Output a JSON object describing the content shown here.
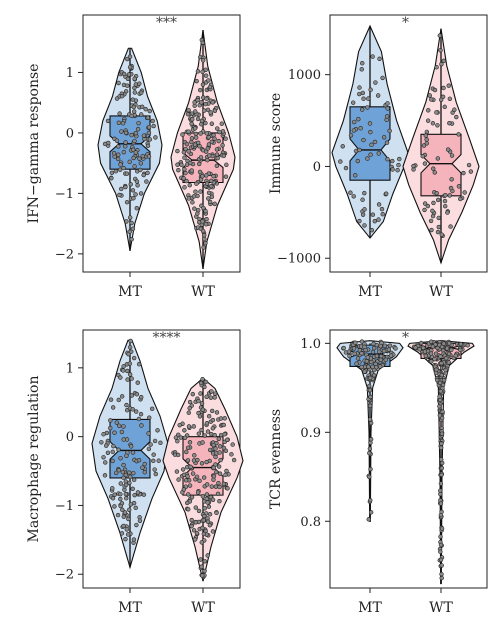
{
  "colors": {
    "MT_violin": "#cfe0f1",
    "MT_box": "#6fa2d6",
    "WT_violin": "#fbdde0",
    "WT_box": "#f5b3bc",
    "point": "#8a8a8a",
    "outline": "#111111"
  },
  "chart_data": [
    {
      "type": "violin",
      "ylabel": "IFN−gamma response",
      "categories": [
        "MT",
        "WT"
      ],
      "ylim": [
        -2.3,
        1.95
      ],
      "yticks": [
        1,
        0,
        -1,
        -2
      ],
      "ytick_labels": [
        "1",
        "0",
        "−1",
        "−2"
      ],
      "significance": "***",
      "box": [
        {
          "group": "MT",
          "q1": -0.6,
          "median": -0.18,
          "q3": 0.28,
          "whisker_low": -1.95,
          "whisker_high": 1.4
        },
        {
          "group": "WT",
          "q1": -0.82,
          "median": -0.45,
          "q3": 0.0,
          "whisker_low": -2.25,
          "whisker_high": 1.7
        }
      ]
    },
    {
      "type": "violin",
      "ylabel": "Immune score",
      "categories": [
        "MT",
        "WT"
      ],
      "ylim": [
        -1150,
        1650
      ],
      "yticks": [
        1000,
        0,
        -1000
      ],
      "ytick_labels": [
        "1000",
        "0",
        "−1000"
      ],
      "significance": "*",
      "box": [
        {
          "group": "MT",
          "q1": -150,
          "median": 180,
          "q3": 650,
          "whisker_low": -780,
          "whisker_high": 1530
        },
        {
          "group": "WT",
          "q1": -320,
          "median": 30,
          "q3": 350,
          "whisker_low": -1050,
          "whisker_high": 1500
        }
      ]
    },
    {
      "type": "violin",
      "ylabel": "Macrophage regulation",
      "categories": [
        "MT",
        "WT"
      ],
      "ylim": [
        -2.2,
        1.55
      ],
      "yticks": [
        1,
        0,
        -1,
        -2
      ],
      "ytick_labels": [
        "1",
        "0",
        "−1",
        "−2"
      ],
      "significance": "****",
      "box": [
        {
          "group": "MT",
          "q1": -0.6,
          "median": -0.2,
          "q3": 0.25,
          "whisker_low": -1.9,
          "whisker_high": 1.4
        },
        {
          "group": "WT",
          "q1": -0.85,
          "median": -0.45,
          "q3": 0.0,
          "whisker_low": -2.1,
          "whisker_high": 0.85
        }
      ]
    },
    {
      "type": "violin",
      "ylabel": "TCR evenness",
      "categories": [
        "MT",
        "WT"
      ],
      "ylim": [
        0.725,
        1.015
      ],
      "yticks": [
        1.0,
        0.9,
        0.8
      ],
      "ytick_labels": [
        "1.0",
        "0.9",
        "0.8"
      ],
      "significance": "*",
      "box": [
        {
          "group": "MT",
          "q1": 0.974,
          "median": 0.988,
          "q3": 0.998,
          "whisker_low": 0.8,
          "whisker_high": 1.0
        },
        {
          "group": "WT",
          "q1": 0.983,
          "median": 0.995,
          "q3": 1.0,
          "whisker_low": 0.73,
          "whisker_high": 1.0
        }
      ]
    }
  ]
}
